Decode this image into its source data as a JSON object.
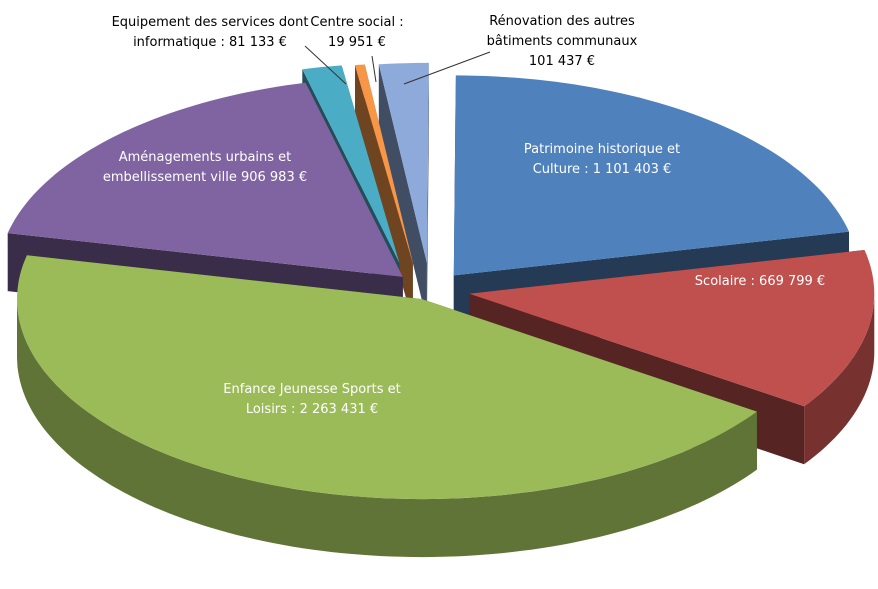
{
  "chart_data": {
    "type": "pie3d",
    "values": [
      1101403,
      669799,
      2263431,
      906983,
      81133,
      19951,
      101437
    ],
    "value_labels": [
      "Patrimoine historique et Culture : 1 101 403 €",
      "Scolaire : 669 799 €",
      "Enfance Jeunesse Sports et Loisirs : 2 263 431 €",
      "Aménagements urbains et embellissement ville 906 983 €",
      "Equipement des services dont informatique : 81 133 €",
      "Centre social : 19 951 €",
      "Rénovation des autres bâtiments communaux 101 437 €"
    ],
    "colors": [
      "#4f81bd",
      "#c0504d",
      "#9bbb59",
      "#8064a2",
      "#4bacc6",
      "#f79646",
      "#8eaadb"
    ]
  }
}
